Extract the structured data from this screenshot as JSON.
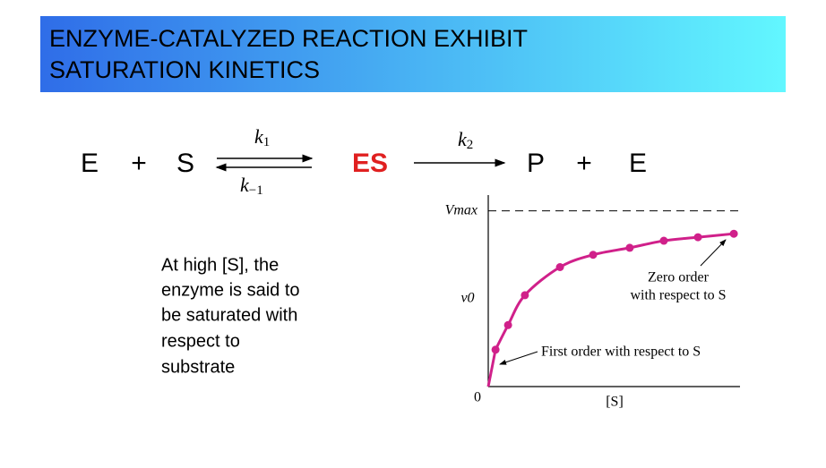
{
  "header": {
    "title_lines": [
      "ENZYME-CATALYZED REACTION EXHIBIT",
      "SATURATION KINETICS"
    ]
  },
  "equation": {
    "reactants": [
      "E",
      "+",
      "S"
    ],
    "forward_rate": {
      "symbol": "k",
      "subscript": "1"
    },
    "reverse_rate": {
      "symbol": "k",
      "subscript": "−1"
    },
    "complex": "ES",
    "catalytic_rate": {
      "symbol": "k",
      "subscript": "2"
    },
    "products": [
      "P",
      "+",
      "E"
    ]
  },
  "note": {
    "lines": [
      "At high [S], the",
      "enzyme is said to",
      "be saturated with",
      "respect to",
      "substrate"
    ]
  },
  "chart_data": {
    "type": "line",
    "x_label": "[S]",
    "y_label": "v0",
    "color": "#d0208a",
    "x": [
      0.29,
      0.79,
      1.46,
      2.86,
      4.18,
      5.64,
      7.0,
      8.36,
      9.79
    ],
    "values": [
      0.21,
      0.35,
      0.52,
      0.68,
      0.75,
      0.79,
      0.83,
      0.85,
      0.87
    ],
    "xlim": [
      0,
      10
    ],
    "ylim": [
      0,
      1.09
    ],
    "xticks": [
      0
    ],
    "yticks": [
      {
        "value": 1,
        "label": "Vmax"
      }
    ],
    "annotations": [
      {
        "lines": [
          "Zero order",
          "with respect to S"
        ]
      },
      {
        "lines": [
          "First order with respect to S"
        ]
      }
    ]
  }
}
